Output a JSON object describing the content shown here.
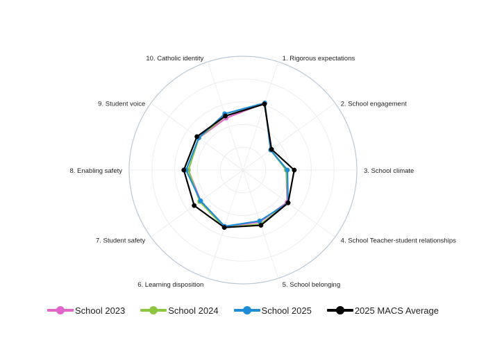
{
  "chart_data": {
    "type": "radar",
    "title": "",
    "axes": [
      "1. Rigorous expectations",
      "2. School engagement",
      "3. School climate",
      "4. School Teacher-student relationships",
      "5. School belonging",
      "6. Learning disposition",
      "7. Student safety",
      "8. Enabling safety",
      "9. Student voice",
      "10. Catholic identity"
    ],
    "range": [
      0,
      100
    ],
    "rings": 5,
    "series": [
      {
        "name": "School 2023",
        "color": "#e066cc",
        "values": [
          62,
          30,
          38,
          48,
          48,
          52,
          46,
          48,
          48,
          48
        ]
      },
      {
        "name": "School 2024",
        "color": "#8cc63f",
        "values": [
          62,
          30,
          38,
          49,
          50,
          53,
          47,
          48,
          48,
          50
        ]
      },
      {
        "name": "School 2025",
        "color": "#1f8dd6",
        "values": [
          62,
          30,
          39,
          49,
          47,
          52,
          46,
          50,
          48,
          52
        ]
      },
      {
        "name": "2025 MACS Average",
        "color": "#000000",
        "values": [
          61,
          31,
          45,
          49,
          51,
          53,
          53,
          52,
          50,
          50
        ]
      }
    ],
    "legend_position": "bottom",
    "grid": true
  },
  "legend": [
    {
      "label": "School 2023",
      "color": "#e066cc"
    },
    {
      "label": "School 2024",
      "color": "#8cc63f"
    },
    {
      "label": "School 2025",
      "color": "#1f8dd6"
    },
    {
      "label": "2025 MACS Average",
      "color": "#000000"
    }
  ]
}
